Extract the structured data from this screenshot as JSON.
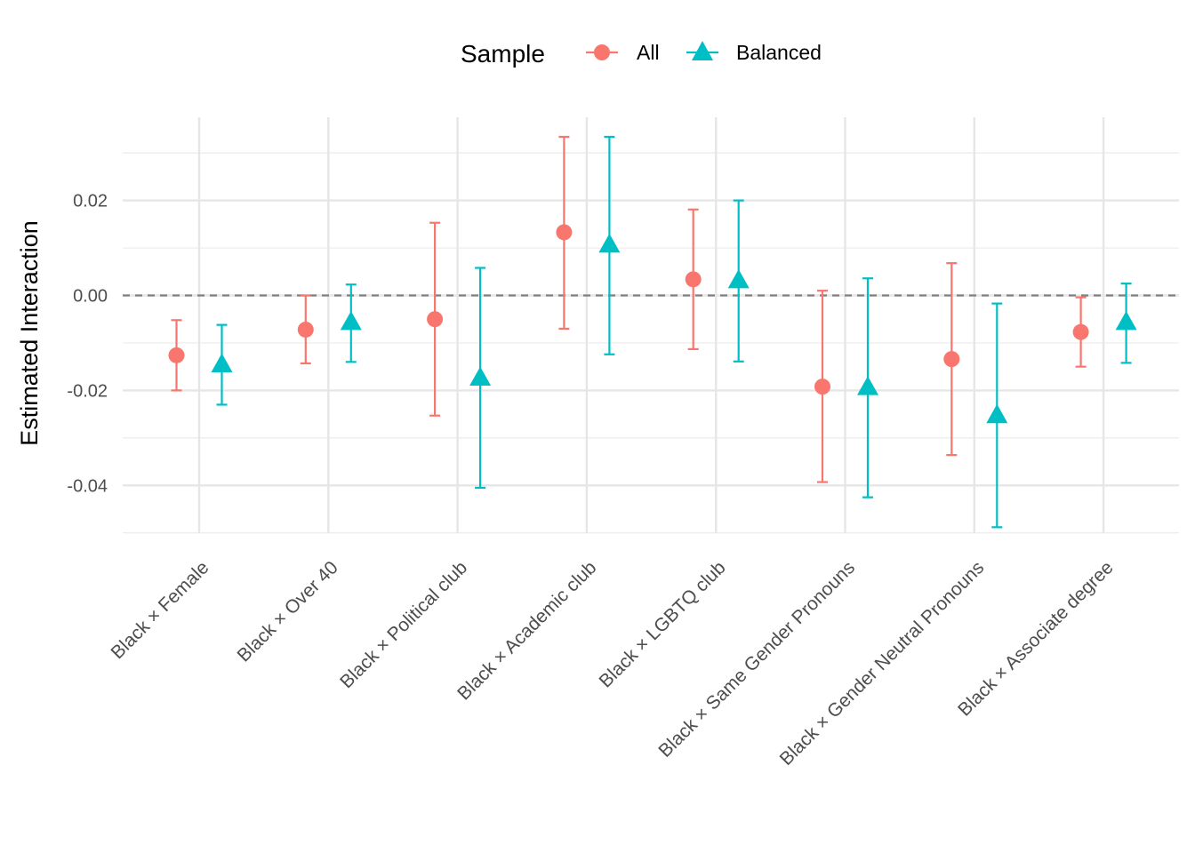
{
  "chart_data": {
    "type": "scatter",
    "title": "",
    "xlabel": "",
    "ylabel": "Estimated Interaction",
    "ylim": [
      -0.0525,
      0.0375
    ],
    "yticks": [
      -0.04,
      -0.02,
      0.0,
      0.02
    ],
    "ytick_labels": [
      "-0.04",
      "-0.02",
      "0.00",
      "0.02"
    ],
    "reference_line": 0.0,
    "grid": true,
    "legend": {
      "title": "Sample",
      "position": "top"
    },
    "categories": [
      "Black × Female",
      "Black × Over 40",
      "Black × Political club",
      "Black × Academic club",
      "Black × LGBTQ club",
      "Black × Same Gender Pronouns",
      "Black × Gender Neutral Pronouns",
      "Black × Associate degree"
    ],
    "series": [
      {
        "name": "All",
        "color": "#F8766D",
        "marker": "circle",
        "estimates": [
          -0.0126,
          -0.0072,
          -0.005,
          0.0133,
          0.0034,
          -0.0192,
          -0.0134,
          -0.0077
        ],
        "lower": [
          -0.02,
          -0.0143,
          -0.0253,
          -0.007,
          -0.0113,
          -0.0393,
          -0.0336,
          -0.015
        ],
        "upper": [
          -0.0052,
          0.0,
          0.0153,
          0.0334,
          0.0181,
          0.001,
          0.0068,
          -0.0004
        ]
      },
      {
        "name": "Balanced",
        "color": "#00BFC4",
        "marker": "triangle",
        "estimates": [
          -0.0145,
          -0.0056,
          -0.0173,
          0.0107,
          0.0032,
          -0.0193,
          -0.0252,
          -0.0056
        ],
        "lower": [
          -0.023,
          -0.014,
          -0.0405,
          -0.0124,
          -0.0139,
          -0.0425,
          -0.0488,
          -0.0142
        ],
        "upper": [
          -0.0062,
          0.0023,
          0.0058,
          0.0334,
          0.02,
          0.0036,
          -0.0017,
          0.0025
        ]
      }
    ]
  }
}
